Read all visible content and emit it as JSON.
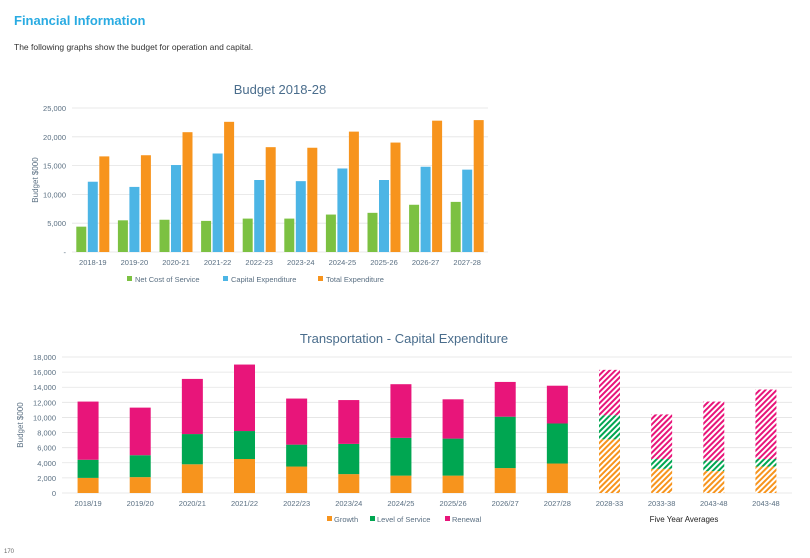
{
  "page": {
    "heading": "Financial Information",
    "intro": "The following graphs show the budget for operation and capital.",
    "page_number": "170"
  },
  "colors": {
    "net_cost": "#7cc142",
    "capital": "#4cb5e5",
    "total": "#f7941d",
    "growth": "#f7941d",
    "level_of_service": "#00a651",
    "renewal": "#e8157a",
    "title": "#4a6d8c",
    "axis_text": "#5a6f82",
    "grid": "#e3e3e3"
  },
  "chart_data": [
    {
      "type": "bar",
      "title": "Budget 2018-28",
      "ylabel": "Budget $000",
      "ylim": [
        0,
        25000
      ],
      "yticks": [
        {
          "value": 0,
          "label": "-"
        },
        {
          "value": 5000,
          "label": "5,000"
        },
        {
          "value": 10000,
          "label": "10,000"
        },
        {
          "value": 15000,
          "label": "15,000"
        },
        {
          "value": 20000,
          "label": "20,000"
        },
        {
          "value": 25000,
          "label": "25,000"
        }
      ],
      "categories": [
        "2018-19",
        "2019-20",
        "2020-21",
        "2021-22",
        "2022-23",
        "2023-24",
        "2024-25",
        "2025-26",
        "2026-27",
        "2027-28"
      ],
      "series": [
        {
          "name": "Net Cost of Service",
          "color_key": "net_cost",
          "values": [
            4400,
            5500,
            5600,
            5400,
            5800,
            5800,
            6500,
            6800,
            8200,
            8700
          ]
        },
        {
          "name": "Capital Expenditure",
          "color_key": "capital",
          "values": [
            12200,
            11300,
            15100,
            17100,
            12500,
            12300,
            14500,
            12500,
            14800,
            14300
          ]
        },
        {
          "name": "Total Expenditure",
          "color_key": "total",
          "values": [
            16600,
            16800,
            20800,
            22600,
            18200,
            18100,
            20900,
            19000,
            22800,
            22900
          ]
        }
      ],
      "legend_position": "bottom",
      "grid": true
    },
    {
      "type": "bar",
      "stacked": true,
      "title": "Transportation - Capital Expenditure",
      "ylabel": "Budget $000",
      "ylim": [
        0,
        18000
      ],
      "yticks": [
        {
          "value": 0,
          "label": "0"
        },
        {
          "value": 2000,
          "label": "2,000"
        },
        {
          "value": 4000,
          "label": "4,000"
        },
        {
          "value": 6000,
          "label": "6,000"
        },
        {
          "value": 8000,
          "label": "8,000"
        },
        {
          "value": 10000,
          "label": "10,000"
        },
        {
          "value": 12000,
          "label": "12,000"
        },
        {
          "value": 14000,
          "label": "14,000"
        },
        {
          "value": 16000,
          "label": "16,000"
        },
        {
          "value": 18000,
          "label": "18,000"
        }
      ],
      "categories": [
        "2018/19",
        "2019/20",
        "2020/21",
        "2021/22",
        "2022/23",
        "2023/24",
        "2024/25",
        "2025/26",
        "2026/27",
        "2027/28",
        "2028-33",
        "2033-38",
        "2043-48",
        "2043-48"
      ],
      "hatched_from_index": 10,
      "averages_label": "Five Year Averages",
      "series": [
        {
          "name": "Growth",
          "color_key": "growth",
          "values": [
            2000,
            2100,
            3800,
            4500,
            3500,
            2500,
            2300,
            2300,
            3300,
            3900,
            7100,
            3200,
            2900,
            3500
          ]
        },
        {
          "name": "Level of Service",
          "color_key": "level_of_service",
          "values": [
            2400,
            2900,
            4000,
            3700,
            2900,
            4000,
            5000,
            4900,
            6800,
            5300,
            3200,
            1300,
            1400,
            1000
          ]
        },
        {
          "name": "Renewal",
          "color_key": "renewal",
          "values": [
            7700,
            6300,
            7300,
            8800,
            6100,
            5800,
            7100,
            5200,
            4600,
            5000,
            6000,
            5900,
            7800,
            9200
          ]
        }
      ],
      "legend_position": "bottom",
      "grid": true
    }
  ]
}
